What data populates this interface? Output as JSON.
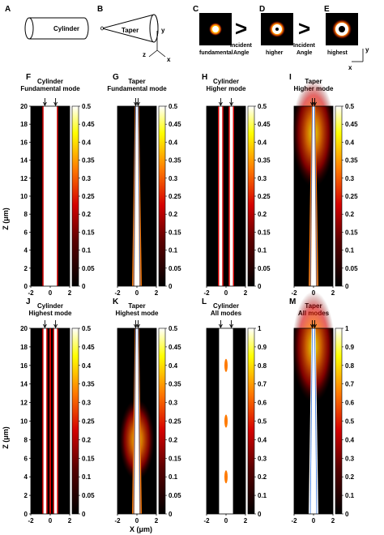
{
  "figure": {
    "schematic": {
      "A": {
        "letter": "A",
        "label": "Cylinder"
      },
      "B": {
        "letter": "B",
        "label": "Taper",
        "axes": {
          "y": "y",
          "z": "z",
          "x": "x"
        }
      },
      "C": {
        "letter": "C",
        "caption": "fundamental"
      },
      "D": {
        "letter": "D",
        "caption": "higher"
      },
      "E": {
        "letter": "E",
        "caption": "highest",
        "axes": {
          "x": "x",
          "y": "y"
        }
      },
      "comparison_symbol": ">",
      "comparison_text_line1": "Incident",
      "comparison_text_line2": "Angle"
    },
    "ylabel": "Z (μm)",
    "xlabel": "X (μm)",
    "colors": {
      "black": "#000000",
      "dark_red": "#5a0000",
      "red": "#d40000",
      "orange": "#ff7a00",
      "yellow": "#ffff00",
      "white": "#ffffff",
      "taper_line": "#2e6fd8",
      "cyl_line": "#b8860b"
    }
  },
  "chart_data": [
    {
      "type": "heatmap",
      "panel": "F",
      "title_line1": "Cylinder",
      "title_line2": "Fundamental mode",
      "xlim": [
        -2,
        2
      ],
      "ylim": [
        0,
        20
      ],
      "x_ticks": [
        -2,
        0,
        2
      ],
      "y_ticks": [
        0,
        2,
        4,
        6,
        8,
        10,
        12,
        14,
        16,
        18,
        20
      ],
      "colorbar_ticks": [
        0,
        0.05,
        0.1,
        0.15,
        0.2,
        0.25,
        0.3,
        0.35,
        0.4,
        0.45,
        0.5
      ],
      "clim": [
        0,
        0.5
      ]
    },
    {
      "type": "heatmap",
      "panel": "G",
      "title_line1": "Taper",
      "title_line2": "Fundamental mode",
      "xlim": [
        -2,
        2
      ],
      "ylim": [
        0,
        20
      ],
      "x_ticks": [
        -2,
        0,
        2
      ],
      "colorbar_ticks": [
        0,
        0.05,
        0.1,
        0.15,
        0.2,
        0.25,
        0.3,
        0.35,
        0.4,
        0.45,
        0.5
      ],
      "clim": [
        0,
        0.5
      ]
    },
    {
      "type": "heatmap",
      "panel": "H",
      "title_line1": "Cylinder",
      "title_line2": "Higher mode",
      "xlim": [
        -2,
        2
      ],
      "ylim": [
        0,
        20
      ],
      "x_ticks": [
        -2,
        0,
        2
      ],
      "colorbar_ticks": [
        0,
        0.05,
        0.1,
        0.15,
        0.2,
        0.25,
        0.3,
        0.35,
        0.4,
        0.45,
        0.5
      ],
      "clim": [
        0,
        0.5
      ]
    },
    {
      "type": "heatmap",
      "panel": "I",
      "title_line1": "Taper",
      "title_line2": "Higher mode",
      "xlim": [
        -2,
        2
      ],
      "ylim": [
        0,
        20
      ],
      "x_ticks": [
        -2,
        0,
        2
      ],
      "colorbar_ticks": [
        0,
        0.05,
        0.1,
        0.15,
        0.2,
        0.25,
        0.3,
        0.35,
        0.4,
        0.45,
        0.5
      ],
      "clim": [
        0,
        0.5
      ]
    },
    {
      "type": "heatmap",
      "panel": "J",
      "title_line1": "Cylinder",
      "title_line2": "Highest mode",
      "xlim": [
        -2,
        2
      ],
      "ylim": [
        0,
        20
      ],
      "x_ticks": [
        -2,
        0,
        2
      ],
      "y_ticks": [
        0,
        2,
        4,
        6,
        8,
        10,
        12,
        14,
        16,
        18,
        20
      ],
      "colorbar_ticks": [
        0,
        0.05,
        0.1,
        0.15,
        0.2,
        0.25,
        0.3,
        0.35,
        0.4,
        0.45,
        0.5
      ],
      "clim": [
        0,
        0.5
      ]
    },
    {
      "type": "heatmap",
      "panel": "K",
      "title_line1": "Taper",
      "title_line2": "Highest mode",
      "xlim": [
        -2,
        2
      ],
      "ylim": [
        0,
        20
      ],
      "x_ticks": [
        -2,
        0,
        2
      ],
      "colorbar_ticks": [
        0,
        0.05,
        0.1,
        0.15,
        0.2,
        0.25,
        0.3,
        0.35,
        0.4,
        0.45,
        0.5
      ],
      "clim": [
        0,
        0.5
      ]
    },
    {
      "type": "heatmap",
      "panel": "L",
      "title_line1": "Cylinder",
      "title_line2": "All modes",
      "xlim": [
        -2,
        2
      ],
      "ylim": [
        0,
        20
      ],
      "x_ticks": [
        -2,
        0,
        2
      ],
      "colorbar_ticks": [
        0,
        0.1,
        0.2,
        0.3,
        0.4,
        0.5,
        0.6,
        0.7,
        0.8,
        0.9,
        1
      ],
      "clim": [
        0,
        1
      ]
    },
    {
      "type": "heatmap",
      "panel": "M",
      "title_line1": "Taper",
      "title_line2": "All modes",
      "xlim": [
        -2,
        2
      ],
      "ylim": [
        0,
        20
      ],
      "x_ticks": [
        -2,
        0,
        2
      ],
      "colorbar_ticks": [
        0,
        0.1,
        0.2,
        0.3,
        0.4,
        0.5,
        0.6,
        0.7,
        0.8,
        0.9,
        1
      ],
      "clim": [
        0,
        1
      ]
    }
  ]
}
